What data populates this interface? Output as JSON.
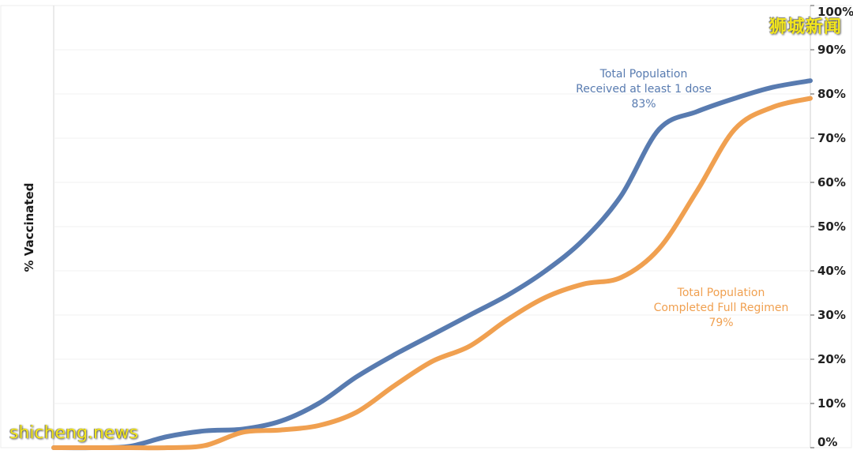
{
  "watermarks": {
    "top_right": "狮城新闻",
    "bottom_left": "shicheng.news"
  },
  "chart_data": {
    "type": "line",
    "title": "",
    "xlabel": "",
    "ylabel": "% Vaccinated",
    "ylim": [
      0,
      100
    ],
    "y_ticks": [
      "0%",
      "10%",
      "20%",
      "30%",
      "40%",
      "50%",
      "60%",
      "70%",
      "80%",
      "90%",
      "100%"
    ],
    "y_axis_side": "right",
    "grid": true,
    "x_progress_points": [
      0,
      0.05,
      0.1,
      0.15,
      0.2,
      0.25,
      0.3,
      0.35,
      0.4,
      0.45,
      0.5,
      0.55,
      0.6,
      0.65,
      0.7,
      0.75,
      0.8,
      0.85,
      0.9,
      0.95,
      1.0
    ],
    "series": [
      {
        "name": "Total Population Received at least 1 dose",
        "color": "#587bb0",
        "values": [
          0,
          0,
          0.3,
          2.5,
          3.8,
          4.2,
          6,
          10,
          16,
          21,
          25.5,
          30,
          34.5,
          40,
          47,
          57,
          72,
          76,
          79,
          81.5,
          83
        ]
      },
      {
        "name": "Total Population Completed Full Regimen",
        "color": "#f0a050",
        "values": [
          0,
          0,
          0,
          0,
          0.5,
          3.5,
          4,
          5,
          8,
          14,
          19.5,
          23,
          29,
          34,
          37,
          38.5,
          45,
          58,
          72,
          77,
          79
        ]
      }
    ],
    "annotations": [
      {
        "series": 0,
        "lines": [
          "Total Population",
          "Received at least 1 dose",
          "83%"
        ]
      },
      {
        "series": 1,
        "lines": [
          "Total Population",
          "Completed Full Regimen",
          "79%"
        ]
      }
    ]
  }
}
